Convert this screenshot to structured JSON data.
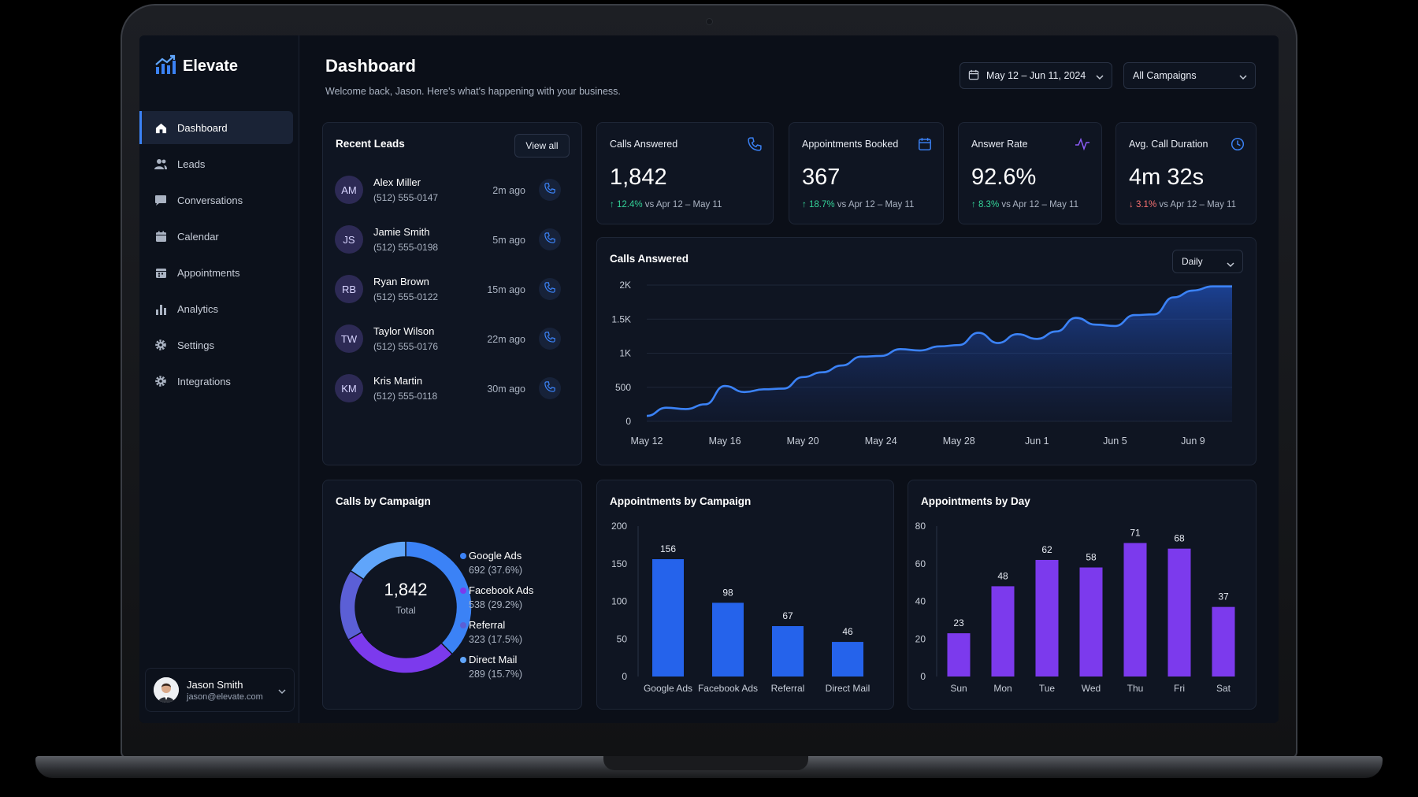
{
  "app": {
    "name": "Elevate"
  },
  "sidebar": {
    "items": [
      {
        "label": "Dashboard",
        "icon": "home-icon",
        "active": true
      },
      {
        "label": "Leads",
        "icon": "users-icon"
      },
      {
        "label": "Conversations",
        "icon": "chat-icon"
      },
      {
        "label": "Calendar",
        "icon": "calendar-icon"
      },
      {
        "label": "Appointments",
        "icon": "calendar-check-icon"
      },
      {
        "label": "Analytics",
        "icon": "bar-chart-icon"
      },
      {
        "label": "Settings",
        "icon": "gear-icon"
      },
      {
        "label": "Integrations",
        "icon": "gear-icon"
      }
    ],
    "user": {
      "name": "Jason Smith",
      "email": "jason@elevate.com"
    }
  },
  "header": {
    "title": "Dashboard",
    "subtitle": "Welcome back, Jason. Here's what's happening with your business.",
    "date_range": "May 12 – Jun 11, 2024",
    "campaign_filter": "All Campaigns"
  },
  "recent_leads": {
    "title": "Recent Leads",
    "view_all": "View all",
    "items": [
      {
        "initials": "AM",
        "name": "Alex Miller",
        "phone": "(512) 555-0147",
        "time": "2m ago"
      },
      {
        "initials": "JS",
        "name": "Jamie Smith",
        "phone": "(512) 555-0198",
        "time": "5m ago"
      },
      {
        "initials": "RB",
        "name": "Ryan Brown",
        "phone": "(512) 555-0122",
        "time": "15m ago"
      },
      {
        "initials": "TW",
        "name": "Taylor Wilson",
        "phone": "(512) 555-0176",
        "time": "22m ago"
      },
      {
        "initials": "KM",
        "name": "Kris Martin",
        "phone": "(512) 555-0118",
        "time": "30m ago"
      }
    ]
  },
  "kpis": [
    {
      "label": "Calls Answered",
      "value": "1,842",
      "delta": "12.4%",
      "direction": "up",
      "compare": "vs Apr 12 – May 11",
      "icon": "phone-icon"
    },
    {
      "label": "Appointments Booked",
      "value": "367",
      "delta": "18.7%",
      "direction": "up",
      "compare": "vs Apr 12 – May 11",
      "icon": "calendar-icon"
    },
    {
      "label": "Answer Rate",
      "value": "92.6%",
      "delta": "8.3%",
      "direction": "up",
      "compare": "vs Apr 12 – May 11",
      "icon": "activity-icon"
    },
    {
      "label": "Avg. Call Duration",
      "value": "4m 32s",
      "delta": "3.1%",
      "direction": "down",
      "compare": "vs Apr 12 – May 11",
      "icon": "clock-icon"
    }
  ],
  "colors": {
    "accent": "#3b82f6",
    "purple": "#7c3aed",
    "up": "#34d399",
    "down": "#f87171"
  },
  "chart_data": [
    {
      "type": "area",
      "title": "Calls Answered",
      "granularity": "Daily",
      "x_tick_labels": [
        "May 12",
        "May 16",
        "May 20",
        "May 24",
        "May 28",
        "Jun 1",
        "Jun 5",
        "Jun 9"
      ],
      "y_tick_labels": [
        "0",
        "500",
        "1K",
        "1.5K",
        "2K"
      ],
      "ylim": [
        0,
        2000
      ],
      "x": [
        "May 12",
        "May 13",
        "May 14",
        "May 15",
        "May 16",
        "May 17",
        "May 18",
        "May 19",
        "May 20",
        "May 21",
        "May 22",
        "May 23",
        "May 24",
        "May 25",
        "May 26",
        "May 27",
        "May 28",
        "May 29",
        "May 30",
        "May 31",
        "Jun 1",
        "Jun 2",
        "Jun 3",
        "Jun 4",
        "Jun 5",
        "Jun 6",
        "Jun 7",
        "Jun 8",
        "Jun 9",
        "Jun 10",
        "Jun 11"
      ],
      "values": [
        80,
        200,
        180,
        250,
        520,
        430,
        470,
        480,
        650,
        720,
        820,
        950,
        960,
        1060,
        1040,
        1100,
        1120,
        1300,
        1150,
        1280,
        1210,
        1320,
        1520,
        1420,
        1400,
        1560,
        1570,
        1820,
        1920,
        1980,
        1980
      ]
    },
    {
      "type": "donut",
      "title": "Calls by Campaign",
      "total": "1,842",
      "total_label": "Total",
      "slices": [
        {
          "name": "Google Ads",
          "value": 692,
          "pct": "37.6%",
          "color": "#3b82f6"
        },
        {
          "name": "Facebook Ads",
          "value": 538,
          "pct": "29.2%",
          "color": "#7c3aed"
        },
        {
          "name": "Referral",
          "value": 323,
          "pct": "17.5%",
          "color": "#5b5fd6"
        },
        {
          "name": "Direct Mail",
          "value": 289,
          "pct": "15.7%",
          "color": "#60a5fa"
        }
      ],
      "legend_values": [
        "692 (37.6%)",
        "538 (29.2%)",
        "323 (17.5%)",
        "289 (15.7%)"
      ]
    },
    {
      "type": "bar",
      "title": "Appointments by Campaign",
      "categories": [
        "Google Ads",
        "Facebook Ads",
        "Referral",
        "Direct Mail"
      ],
      "values": [
        156,
        98,
        67,
        46
      ],
      "ylim": [
        0,
        200
      ],
      "y_tick_labels": [
        "0",
        "50",
        "100",
        "150",
        "200"
      ],
      "color": "#2563eb"
    },
    {
      "type": "bar",
      "title": "Appointments by Day",
      "categories": [
        "Sun",
        "Mon",
        "Tue",
        "Wed",
        "Thu",
        "Fri",
        "Sat"
      ],
      "values": [
        23,
        48,
        62,
        58,
        71,
        68,
        37
      ],
      "ylim": [
        0,
        80
      ],
      "y_tick_labels": [
        "0",
        "20",
        "40",
        "60",
        "80"
      ],
      "color": "#7c3aed"
    }
  ]
}
